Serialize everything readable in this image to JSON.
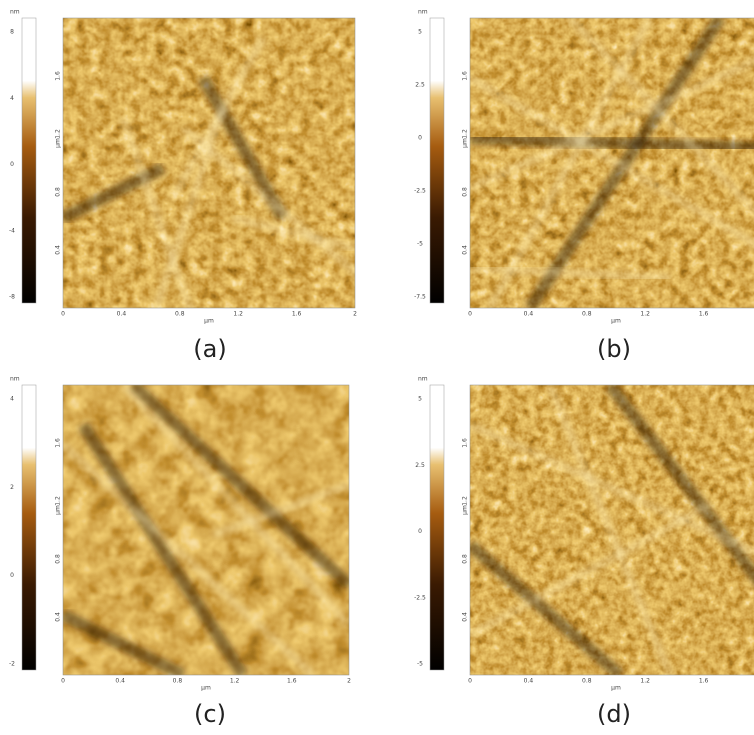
{
  "panels": [
    {
      "label": "(a)",
      "colorbar_unit": "nm",
      "colorbar_ticks": [
        "8",
        "4",
        "0",
        "-4",
        "-8"
      ],
      "axis_unit": "μm",
      "x_ticks": [
        "0",
        "0.4",
        "0.8",
        "1.2",
        "1.6",
        "2"
      ],
      "y_ticks": [
        "1.6",
        "1.2",
        "0.8",
        "0.4"
      ]
    },
    {
      "label": "(b)",
      "colorbar_unit": "nm",
      "colorbar_ticks": [
        "5",
        "2.5",
        "0",
        "-2.5",
        "-5",
        "-7.5"
      ],
      "axis_unit": "μm",
      "x_ticks": [
        "0",
        "0.4",
        "0.8",
        "1.2",
        "1.6"
      ],
      "y_ticks": [
        "1.6",
        "1.2",
        "0.8",
        "0.4"
      ]
    },
    {
      "label": "(c)",
      "colorbar_unit": "nm",
      "colorbar_ticks": [
        "4",
        "2",
        "0",
        "-2"
      ],
      "axis_unit": "μm",
      "x_ticks": [
        "0",
        "0.4",
        "0.8",
        "1.2",
        "1.6",
        "2"
      ],
      "y_ticks": [
        "1.6",
        "1.2",
        "0.8",
        "0.4"
      ]
    },
    {
      "label": "(d)",
      "colorbar_unit": "nm",
      "colorbar_ticks": [
        "5",
        "2.5",
        "0",
        "-2.5",
        "-5"
      ],
      "axis_unit": "μm",
      "x_ticks": [
        "0",
        "0.4",
        "0.8",
        "1.2",
        "1.6"
      ],
      "y_ticks": [
        "1.6",
        "1.2",
        "0.8",
        "0.4"
      ]
    }
  ]
}
